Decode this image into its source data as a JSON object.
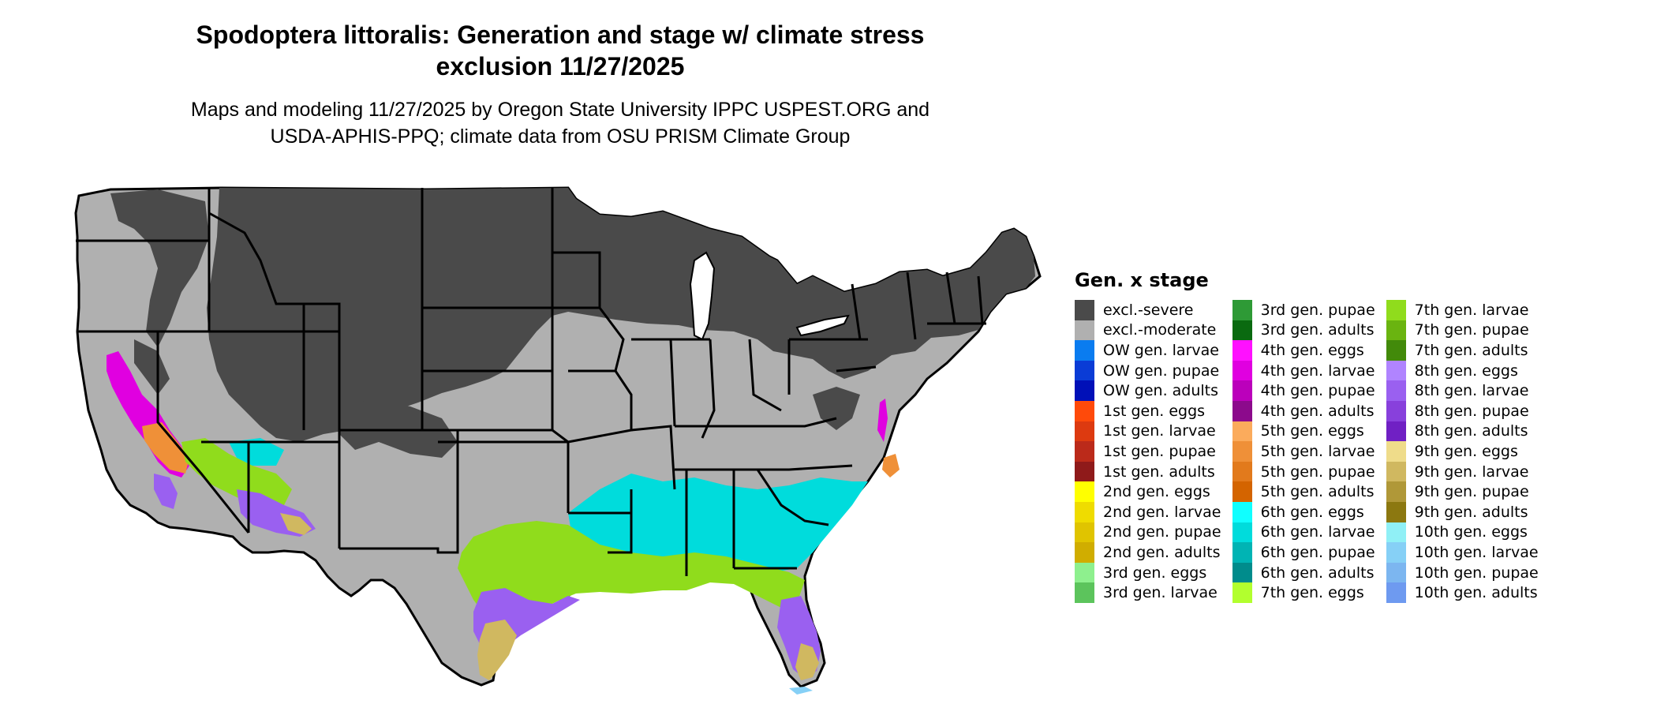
{
  "title_line1": "Spodoptera littoralis: Generation and stage w/ climate stress",
  "title_line2": "exclusion 11/27/2025",
  "subtitle_line1": "Maps and modeling 11/27/2025 by Oregon State University IPPC USPEST.ORG and",
  "subtitle_line2": "USDA-APHIS-PPQ; climate data from OSU PRISM Climate Group",
  "legend": {
    "title": "Gen. x stage",
    "items": [
      {
        "label": "excl.-severe",
        "color": "#4a4a4a"
      },
      {
        "label": "excl.-moderate",
        "color": "#b0b0b0"
      },
      {
        "label": "OW gen. larvae",
        "color": "#0a7cf0"
      },
      {
        "label": "OW gen. pupae",
        "color": "#0a3cd6"
      },
      {
        "label": "OW gen. adults",
        "color": "#0010b8"
      },
      {
        "label": "1st gen. eggs",
        "color": "#ff4a0a"
      },
      {
        "label": "1st gen. larvae",
        "color": "#dd3a10"
      },
      {
        "label": "1st gen. pupae",
        "color": "#bb2a1a"
      },
      {
        "label": "1st gen. adults",
        "color": "#8f1a1a"
      },
      {
        "label": "2nd gen. eggs",
        "color": "#ffff00"
      },
      {
        "label": "2nd gen. larvae",
        "color": "#efdc00"
      },
      {
        "label": "2nd gen. pupae",
        "color": "#e0c400"
      },
      {
        "label": "2nd gen. adults",
        "color": "#d0ad00"
      },
      {
        "label": "3rd gen. eggs",
        "color": "#8ef08e"
      },
      {
        "label": "3rd gen. larvae",
        "color": "#5cc45c"
      },
      {
        "label": "3rd gen. pupae",
        "color": "#2e9a36"
      },
      {
        "label": "3rd gen. adults",
        "color": "#0a6a10"
      },
      {
        "label": "4th gen. eggs",
        "color": "#ff10ff"
      },
      {
        "label": "4th gen. larvae",
        "color": "#e000e0"
      },
      {
        "label": "4th gen. pupae",
        "color": "#bb00bb"
      },
      {
        "label": "4th gen. adults",
        "color": "#8c0a8c"
      },
      {
        "label": "5th gen. eggs",
        "color": "#fbab5c"
      },
      {
        "label": "5th gen. larvae",
        "color": "#ef9038"
      },
      {
        "label": "5th gen. pupae",
        "color": "#e27a1c"
      },
      {
        "label": "5th gen. adults",
        "color": "#d46400"
      },
      {
        "label": "6th gen. eggs",
        "color": "#10ffff"
      },
      {
        "label": "6th gen. larvae",
        "color": "#00dcdc"
      },
      {
        "label": "6th gen. pupae",
        "color": "#00b4b4"
      },
      {
        "label": "6th gen. adults",
        "color": "#008c8c"
      },
      {
        "label": "7th gen. eggs",
        "color": "#b2ff2e"
      },
      {
        "label": "7th gen. larvae",
        "color": "#90dc1c"
      },
      {
        "label": "7th gen. pupae",
        "color": "#6ab410"
      },
      {
        "label": "7th gen. adults",
        "color": "#428a0a"
      },
      {
        "label": "8th gen. eggs",
        "color": "#b084ff"
      },
      {
        "label": "8th gen. larvae",
        "color": "#9a60f0"
      },
      {
        "label": "8th gen. pupae",
        "color": "#8840dc"
      },
      {
        "label": "8th gen. adults",
        "color": "#7020c4"
      },
      {
        "label": "9th gen. eggs",
        "color": "#efdc8a"
      },
      {
        "label": "9th gen. larvae",
        "color": "#d0b860"
      },
      {
        "label": "9th gen. pupae",
        "color": "#b09838"
      },
      {
        "label": "9th gen. adults",
        "color": "#8c7810"
      },
      {
        "label": "10th gen. eggs",
        "color": "#90f0f6"
      },
      {
        "label": "10th gen. larvae",
        "color": "#86d0f6"
      },
      {
        "label": "10th gen. pupae",
        "color": "#7cb6f0"
      },
      {
        "label": "10th gen. adults",
        "color": "#6e9af0"
      }
    ]
  },
  "map_colors": {
    "severe": "#4a4a4a",
    "moderate": "#b0b0b0",
    "gen4": "#e000e0",
    "gen5": "#ef9038",
    "gen6": "#00dcdc",
    "gen7": "#90dc1c",
    "gen8": "#9a60f0",
    "gen9": "#d0b860",
    "gen3": "#5cc45c",
    "gen10": "#86d0f6",
    "boundary": "#000000"
  }
}
